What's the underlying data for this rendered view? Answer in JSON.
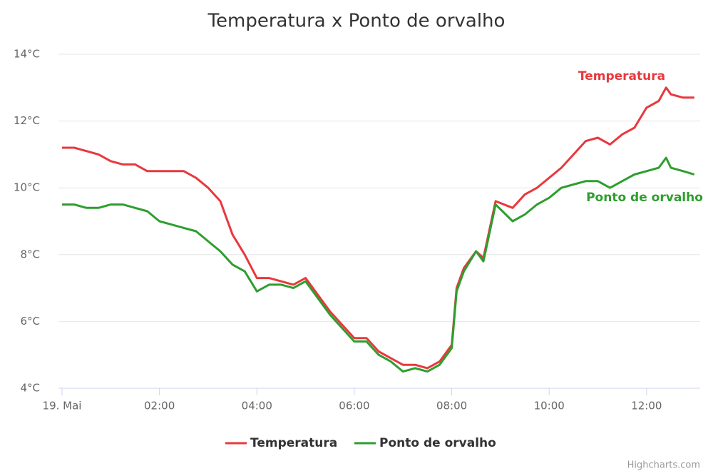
{
  "chart_data": {
    "type": "line",
    "title": "Temperatura x Ponto de orvalho",
    "x": [
      0,
      0.25,
      0.5,
      0.75,
      1,
      1.25,
      1.5,
      1.75,
      2,
      2.25,
      2.5,
      2.75,
      3,
      3.25,
      3.5,
      3.75,
      4,
      4.25,
      4.5,
      4.75,
      5,
      5.25,
      5.5,
      5.75,
      6,
      6.25,
      6.5,
      6.75,
      7,
      7.25,
      7.5,
      7.75,
      8,
      8.1,
      8.25,
      8.5,
      8.65,
      8.9,
      9.25,
      9.5,
      9.75,
      10,
      10.25,
      10.5,
      10.75,
      11,
      11.25,
      11.5,
      11.75,
      12,
      12.25,
      12.4,
      12.5,
      12.75,
      12.98
    ],
    "series": [
      {
        "name": "Temperatura",
        "color": "#e8383d",
        "values": [
          11.2,
          11.2,
          11.1,
          11.0,
          10.8,
          10.7,
          10.7,
          10.5,
          10.5,
          10.5,
          10.5,
          10.3,
          10.0,
          9.6,
          8.6,
          8.0,
          7.3,
          7.3,
          7.2,
          7.1,
          7.3,
          6.8,
          6.3,
          5.9,
          5.5,
          5.5,
          5.1,
          4.9,
          4.7,
          4.7,
          4.6,
          4.8,
          5.3,
          7.0,
          7.6,
          8.1,
          7.9,
          9.6,
          9.4,
          9.8,
          10.0,
          10.3,
          10.6,
          11.0,
          11.4,
          11.5,
          11.3,
          11.6,
          11.8,
          12.4,
          12.6,
          13.0,
          12.8,
          12.7,
          12.7
        ]
      },
      {
        "name": "Ponto de orvalho",
        "color": "#2e9e2e",
        "values": [
          9.5,
          9.5,
          9.4,
          9.4,
          9.5,
          9.5,
          9.4,
          9.3,
          9.0,
          8.9,
          8.8,
          8.7,
          8.4,
          8.1,
          7.7,
          7.5,
          6.9,
          7.1,
          7.1,
          7.0,
          7.2,
          6.7,
          6.2,
          5.8,
          5.4,
          5.4,
          5.0,
          4.8,
          4.5,
          4.6,
          4.5,
          4.7,
          5.2,
          6.9,
          7.5,
          8.1,
          7.8,
          9.5,
          9.0,
          9.2,
          9.5,
          9.7,
          10.0,
          10.1,
          10.2,
          10.2,
          10.0,
          10.2,
          10.4,
          10.5,
          10.6,
          10.9,
          10.6,
          10.5,
          10.4
        ]
      }
    ],
    "xlim": [
      0,
      13.1
    ],
    "xticks": [
      {
        "value": 0,
        "label": "19. Mai"
      },
      {
        "value": 2,
        "label": "02:00"
      },
      {
        "value": 4,
        "label": "04:00"
      },
      {
        "value": 6,
        "label": "06:00"
      },
      {
        "value": 8,
        "label": "08:00"
      },
      {
        "value": 10,
        "label": "10:00"
      },
      {
        "value": 12,
        "label": "12:00"
      }
    ],
    "ylim": [
      4,
      14
    ],
    "yticks": [
      {
        "value": 4,
        "label": "4°C"
      },
      {
        "value": 6,
        "label": "6°C"
      },
      {
        "value": 8,
        "label": "8°C"
      },
      {
        "value": 10,
        "label": "10°C"
      },
      {
        "value": 12,
        "label": "12°C"
      },
      {
        "value": 14,
        "label": "14°C"
      }
    ],
    "grid": true,
    "legend": "bottom",
    "credits": "Highcharts.com"
  }
}
